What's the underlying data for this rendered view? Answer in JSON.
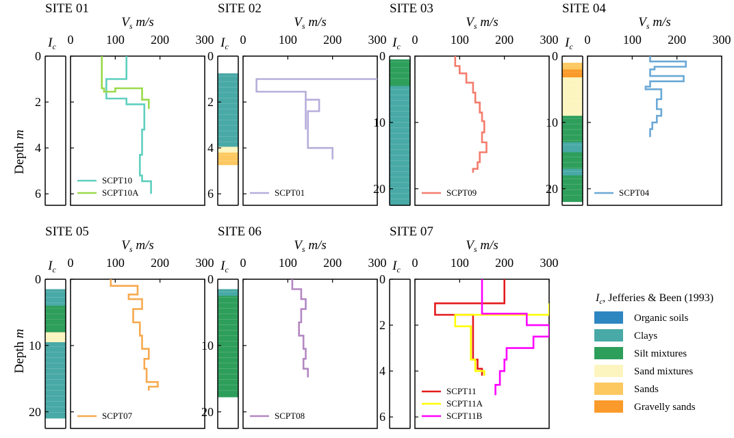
{
  "figure": {
    "y_axis_label": "Depth",
    "y_axis_unit": "m",
    "vs_label": "V",
    "vs_sub": "s",
    "vs_unit": "m/s",
    "ic_label": "I",
    "ic_sub": "c"
  },
  "ic_legend": {
    "title_sym": "I",
    "title_sub": "c",
    "title_text": ", Jefferies & Been (1993)",
    "items": [
      {
        "label": "Organic soils",
        "color": "#2e86c1"
      },
      {
        "label": "Clays",
        "color": "#48a9a6"
      },
      {
        "label": "Silt mixtures",
        "color": "#2e9e5b"
      },
      {
        "label": "Sand mixtures",
        "color": "#fdf5c0"
      },
      {
        "label": "Sands",
        "color": "#fdc860"
      },
      {
        "label": "Gravelly sands",
        "color": "#f99a2a"
      }
    ]
  },
  "chart_data": [
    {
      "type": "line",
      "title": "SITE 01",
      "xlabel": "Vs m/s",
      "ylabel": "Depth m",
      "xlim": [
        0,
        300
      ],
      "ylim": [
        0,
        6.5
      ],
      "xticks": [
        0,
        100,
        200,
        300
      ],
      "yticks": [
        0,
        2,
        4,
        6
      ],
      "show_ylabel": true,
      "series": [
        {
          "name": "SCPT10",
          "color": "#5fcfbf",
          "steps": [
            [
              0,
              125
            ],
            [
              1.0,
              125
            ],
            [
              1.0,
              80
            ],
            [
              1.85,
              80
            ],
            [
              1.85,
              125
            ],
            [
              2.1,
              125
            ],
            [
              2.1,
              165
            ],
            [
              3.2,
              165
            ],
            [
              3.2,
              160
            ],
            [
              4.3,
              160
            ],
            [
              4.3,
              155
            ],
            [
              5.2,
              155
            ],
            [
              5.2,
              160
            ],
            [
              5.45,
              160
            ],
            [
              5.45,
              180
            ],
            [
              6.0,
              180
            ]
          ]
        },
        {
          "name": "SCPT10A",
          "color": "#9ad94a",
          "steps": [
            [
              0,
              70
            ],
            [
              1.4,
              70
            ],
            [
              1.4,
              75
            ],
            [
              1.55,
              75
            ],
            [
              1.55,
              100
            ],
            [
              1.55,
              100
            ],
            [
              1.4,
              100
            ],
            [
              1.4,
              160
            ],
            [
              1.9,
              160
            ],
            [
              1.9,
              175
            ],
            [
              2.3,
              175
            ]
          ]
        }
      ],
      "ic_strip": {
        "ymax": 6.5,
        "bands": []
      }
    },
    {
      "type": "line",
      "title": "SITE 02",
      "xlabel": "Vs m/s",
      "ylabel": "Depth m",
      "xlim": [
        0,
        300
      ],
      "ylim": [
        0,
        6.5
      ],
      "xticks": [
        0,
        100,
        200,
        300
      ],
      "yticks": [
        0,
        2,
        4,
        6
      ],
      "show_ylabel": false,
      "series": [
        {
          "name": "SCPT01",
          "color": "#b7addb",
          "steps": [
            [
              1.0,
              300
            ],
            [
              1.0,
              30
            ],
            [
              1.55,
              30
            ],
            [
              1.55,
              140
            ],
            [
              1.55,
              140
            ],
            [
              1.55,
              140
            ],
            [
              2.0,
              140
            ],
            [
              2.0,
              140
            ],
            [
              3.2,
              140
            ],
            [
              1.9,
              140
            ],
            [
              1.9,
              170
            ],
            [
              2.4,
              170
            ],
            [
              2.4,
              145
            ],
            [
              4.0,
              145
            ],
            [
              4.0,
              200
            ],
            [
              4.5,
              200
            ]
          ]
        }
      ],
      "ic_strip": {
        "ymax": 6.5,
        "bands": [
          [
            0.75,
            3.95,
            "#48a9a6"
          ],
          [
            3.95,
            4.2,
            "#fdf5c0"
          ],
          [
            4.2,
            4.75,
            "#fdc860"
          ]
        ]
      }
    },
    {
      "type": "line",
      "title": "SITE 03",
      "xlabel": "Vs m/s",
      "ylabel": "Depth m",
      "xlim": [
        0,
        300
      ],
      "ylim": [
        0,
        22.5
      ],
      "xticks": [
        0,
        100,
        200,
        300
      ],
      "yticks": [
        0,
        10,
        20
      ],
      "show_ylabel": false,
      "series": [
        {
          "name": "SCPT09",
          "color": "#f47c6c",
          "steps": [
            [
              0,
              90
            ],
            [
              1.5,
              90
            ],
            [
              1.5,
              100
            ],
            [
              2.6,
              100
            ],
            [
              2.6,
              115
            ],
            [
              4.0,
              115
            ],
            [
              4.0,
              130
            ],
            [
              5.5,
              130
            ],
            [
              5.5,
              135
            ],
            [
              7.0,
              135
            ],
            [
              7.0,
              145
            ],
            [
              8.5,
              145
            ],
            [
              8.5,
              150
            ],
            [
              9.8,
              150
            ],
            [
              9.8,
              155
            ],
            [
              11.5,
              155
            ],
            [
              11.5,
              150
            ],
            [
              13.0,
              150
            ],
            [
              13.0,
              160
            ],
            [
              14.5,
              160
            ],
            [
              14.5,
              145
            ],
            [
              16.0,
              145
            ],
            [
              16.0,
              140
            ],
            [
              17.0,
              140
            ],
            [
              17.0,
              130
            ],
            [
              17.6,
              130
            ]
          ]
        }
      ],
      "ic_strip": {
        "ymax": 22.5,
        "bands": [
          [
            0.5,
            22.5,
            "#48a9a6"
          ],
          [
            0.5,
            4.5,
            "#2e9e5b"
          ]
        ]
      }
    },
    {
      "type": "line",
      "title": "SITE 04",
      "xlabel": "Vs m/s",
      "ylabel": "Depth m",
      "xlim": [
        0,
        300
      ],
      "ylim": [
        0,
        22.5
      ],
      "xticks": [
        0,
        100,
        200,
        300
      ],
      "yticks": [
        0,
        10,
        20
      ],
      "show_ylabel": false,
      "series": [
        {
          "name": "SCPT04",
          "color": "#6aa8d6",
          "steps": [
            [
              0,
              140
            ],
            [
              0.8,
              140
            ],
            [
              0.8,
              220
            ],
            [
              1.6,
              220
            ],
            [
              1.6,
              150
            ],
            [
              2.0,
              150
            ],
            [
              2.0,
              140
            ],
            [
              3.0,
              140
            ],
            [
              3.0,
              215
            ],
            [
              3.8,
              215
            ],
            [
              3.8,
              140
            ],
            [
              4.6,
              140
            ],
            [
              4.6,
              130
            ],
            [
              5.0,
              130
            ],
            [
              5.0,
              165
            ],
            [
              6.5,
              165
            ],
            [
              6.5,
              155
            ],
            [
              8.0,
              155
            ],
            [
              8.0,
              165
            ],
            [
              9.0,
              165
            ],
            [
              9.0,
              155
            ],
            [
              10.0,
              155
            ],
            [
              10.0,
              145
            ],
            [
              11.0,
              145
            ],
            [
              11.0,
              140
            ],
            [
              12.2,
              140
            ]
          ]
        }
      ],
      "ic_strip": {
        "ymax": 22.5,
        "bands": [
          [
            1.0,
            2.0,
            "#fdc860"
          ],
          [
            2.0,
            3.2,
            "#f99a2a"
          ],
          [
            3.2,
            9.0,
            "#fdf5c0"
          ],
          [
            9.0,
            22.0,
            "#2e9e5b"
          ],
          [
            13.0,
            14.5,
            "#48a9a6"
          ],
          [
            17.0,
            18.0,
            "#48a9a6"
          ]
        ]
      }
    },
    {
      "type": "line",
      "title": "SITE 05",
      "xlabel": "Vs m/s",
      "ylabel": "Depth m",
      "xlim": [
        0,
        300
      ],
      "ylim": [
        0,
        22.5
      ],
      "xticks": [
        0,
        100,
        200,
        300
      ],
      "yticks": [
        0,
        10,
        20
      ],
      "show_ylabel": true,
      "series": [
        {
          "name": "SCPT07",
          "color": "#f7a94f",
          "steps": [
            [
              0,
              90
            ],
            [
              1.0,
              90
            ],
            [
              1.0,
              150
            ],
            [
              2.3,
              150
            ],
            [
              2.3,
              130
            ],
            [
              3.0,
              130
            ],
            [
              3.0,
              160
            ],
            [
              4.5,
              160
            ],
            [
              4.5,
              140
            ],
            [
              6.5,
              140
            ],
            [
              6.5,
              155
            ],
            [
              8.5,
              155
            ],
            [
              8.5,
              160
            ],
            [
              10.5,
              160
            ],
            [
              10.5,
              175
            ],
            [
              12.0,
              175
            ],
            [
              12.0,
              165
            ],
            [
              13.5,
              165
            ],
            [
              13.5,
              170
            ],
            [
              15.5,
              170
            ],
            [
              15.5,
              195
            ],
            [
              16.2,
              195
            ],
            [
              16.2,
              175
            ],
            [
              16.8,
              175
            ]
          ]
        }
      ],
      "ic_strip": {
        "ymax": 22.5,
        "bands": [
          [
            1.5,
            21.0,
            "#48a9a6"
          ],
          [
            4.0,
            8.0,
            "#2e9e5b"
          ],
          [
            8.0,
            9.5,
            "#fdf5c0"
          ]
        ]
      }
    },
    {
      "type": "line",
      "title": "SITE 06",
      "xlabel": "Vs m/s",
      "ylabel": "Depth m",
      "xlim": [
        0,
        300
      ],
      "ylim": [
        0,
        22.5
      ],
      "xticks": [
        0,
        100,
        200,
        300
      ],
      "yticks": [
        0,
        10,
        20
      ],
      "show_ylabel": false,
      "series": [
        {
          "name": "SCPT08",
          "color": "#b387c2",
          "steps": [
            [
              0,
              110
            ],
            [
              1.5,
              110
            ],
            [
              1.5,
              130
            ],
            [
              3.0,
              130
            ],
            [
              3.0,
              140
            ],
            [
              4.5,
              140
            ],
            [
              4.5,
              130
            ],
            [
              6.5,
              130
            ],
            [
              6.5,
              125
            ],
            [
              8.5,
              125
            ],
            [
              8.5,
              135
            ],
            [
              10.5,
              135
            ],
            [
              10.5,
              140
            ],
            [
              12.0,
              140
            ],
            [
              12.0,
              135
            ],
            [
              13.5,
              135
            ],
            [
              13.5,
              145
            ],
            [
              14.8,
              145
            ]
          ]
        }
      ],
      "ic_strip": {
        "ymax": 22.5,
        "bands": [
          [
            1.5,
            17.8,
            "#2e9e5b"
          ],
          [
            1.5,
            2.5,
            "#48a9a6"
          ]
        ]
      }
    },
    {
      "type": "line",
      "title": "SITE 07",
      "xlabel": "Vs m/s",
      "ylabel": "Depth m",
      "xlim": [
        0,
        300
      ],
      "ylim": [
        0,
        6.5
      ],
      "xticks": [
        0,
        100,
        200,
        300
      ],
      "yticks": [
        0,
        2,
        4,
        6
      ],
      "show_ylabel": false,
      "series": [
        {
          "name": "SCPT11",
          "color": "#e41a1c",
          "steps": [
            [
              0,
              200
            ],
            [
              1.05,
              200
            ],
            [
              1.05,
              45
            ],
            [
              1.55,
              45
            ],
            [
              1.55,
              130
            ],
            [
              3.5,
              130
            ],
            [
              3.5,
              140
            ],
            [
              3.9,
              140
            ],
            [
              3.9,
              150
            ],
            [
              4.2,
              150
            ]
          ]
        },
        {
          "name": "SCPT11A",
          "color": "#ffff00",
          "steps": [
            [
              1.05,
              300
            ],
            [
              1.05,
              300
            ],
            [
              1.05,
              300
            ],
            [
              1.55,
              300
            ],
            [
              1.55,
              90
            ],
            [
              2.05,
              90
            ],
            [
              2.05,
              125
            ],
            [
              3.5,
              125
            ],
            [
              3.5,
              135
            ],
            [
              4.0,
              135
            ],
            [
              4.0,
              155
            ],
            [
              4.2,
              155
            ]
          ]
        },
        {
          "name": "SCPT11B",
          "color": "#ff00ff",
          "steps": [
            [
              0,
              150
            ],
            [
              1.5,
              150
            ],
            [
              1.5,
              250
            ],
            [
              1.5,
              250
            ],
            [
              2.0,
              250
            ],
            [
              2.0,
              300
            ],
            [
              2.5,
              300
            ],
            [
              2.5,
              265
            ],
            [
              3.0,
              265
            ],
            [
              3.0,
              205
            ],
            [
              3.5,
              205
            ],
            [
              3.5,
              200
            ],
            [
              4.0,
              200
            ],
            [
              4.0,
              190
            ],
            [
              4.6,
              190
            ],
            [
              4.6,
              180
            ],
            [
              5.05,
              180
            ]
          ]
        }
      ],
      "ic_strip": {
        "ymax": 6.5,
        "bands": []
      }
    }
  ]
}
